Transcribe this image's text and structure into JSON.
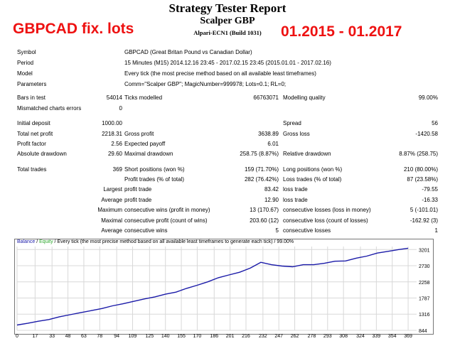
{
  "header": {
    "title": "Strategy Tester Report",
    "expert": "Scalper GBP",
    "server_build": "Alpari-ECN1 (Build 1031)"
  },
  "overlay": {
    "pair_text": "GBPCAD fix. lots",
    "date_range_text": "01.2015 - 01.2017",
    "color": "#ee1111"
  },
  "info": {
    "symbol": {
      "label": "Symbol",
      "value": "GBPCAD (Great Britan Pound vs Canadian Dollar)"
    },
    "period": {
      "label": "Period",
      "value": "15 Minutes (M15) 2014.12.16 23:45 - 2017.02.15 23:45 (2015.01.01 - 2017.02.16)"
    },
    "model": {
      "label": "Model",
      "value": "Every tick (the most precise method based on all available least timeframes)"
    },
    "parameters": {
      "label": "Parameters",
      "value": "Comm=\"Scalper GBP\"; MagicNumber=999978; Lots=0.1; RL=0;"
    }
  },
  "stats": {
    "bars_in_test": {
      "label": "Bars in test",
      "value": "54014"
    },
    "ticks_modelled": {
      "label": "Ticks modelled",
      "value": "66763071"
    },
    "modelling_quality": {
      "label": "Modelling quality",
      "value": "99.00%"
    },
    "mismatched_errors": {
      "label": "Mismatched charts errors",
      "value": "0"
    },
    "initial_deposit": {
      "label": "Initial deposit",
      "value": "1000.00"
    },
    "spread": {
      "label": "Spread",
      "value": "56"
    },
    "total_net_profit": {
      "label": "Total net profit",
      "value": "2218.31"
    },
    "gross_profit": {
      "label": "Gross profit",
      "value": "3638.89"
    },
    "gross_loss": {
      "label": "Gross loss",
      "value": "-1420.58"
    },
    "profit_factor": {
      "label": "Profit factor",
      "value": "2.56"
    },
    "expected_payoff": {
      "label": "Expected payoff",
      "value": "6.01"
    },
    "absolute_drawdown": {
      "label": "Absolute drawdown",
      "value": "29.60"
    },
    "maximal_drawdown": {
      "label": "Maximal drawdown",
      "value": "258.75 (8.87%)"
    },
    "relative_drawdown": {
      "label": "Relative drawdown",
      "value": "8.87% (258.75)"
    },
    "total_trades": {
      "label": "Total trades",
      "value": "369"
    },
    "short_positions": {
      "label": "Short positions (won %)",
      "value": "159 (71.70%)"
    },
    "long_positions": {
      "label": "Long positions (won %)",
      "value": "210 (80.00%)"
    },
    "profit_trades": {
      "label": "Profit trades (% of total)",
      "value": "282 (76.42%)"
    },
    "loss_trades": {
      "label": "Loss trades (% of total)",
      "value": "87 (23.58%)"
    },
    "largest": {
      "label": "Largest",
      "profit_label": "profit trade",
      "profit_value": "83.42",
      "loss_label": "loss trade",
      "loss_value": "-79.55"
    },
    "average": {
      "label": "Average",
      "profit_label": "profit trade",
      "profit_value": "12.90",
      "loss_label": "loss trade",
      "loss_value": "-16.33"
    },
    "maximum": {
      "label": "Maximum",
      "wins_label": "consecutive wins (profit in money)",
      "wins_value": "13 (170.67)",
      "losses_label": "consecutive losses (loss in money)",
      "losses_value": "5 (-101.01)"
    },
    "maximal": {
      "label": "Maximal",
      "profit_label": "consecutive profit (count of wins)",
      "profit_value": "203.60 (12)",
      "loss_label": "consecutive loss (count of losses)",
      "loss_value": "-162.92 (3)"
    },
    "average_consec": {
      "label": "Average",
      "wins_label": "consecutive wins",
      "wins_value": "5",
      "losses_label": "consecutive losses",
      "losses_value": "1"
    }
  },
  "chart_legend": {
    "balance": "Balance",
    "sep1": " / ",
    "equity": "Equity",
    "rest": " / Every tick (the most precise method based on all available least timeframes to generate each tick) / 99.00%"
  },
  "colors": {
    "balance": "#1a1aa8",
    "equity": "#2aa52a",
    "grid": "#d8d8d8"
  },
  "chart_data": {
    "type": "line",
    "title": "Balance / Equity",
    "xlabel": "",
    "ylabel": "",
    "xlim": [
      0,
      377
    ],
    "ylim": [
      844,
      3290
    ],
    "x_ticks": [
      0,
      17,
      33,
      48,
      63,
      78,
      94,
      109,
      125,
      140,
      155,
      170,
      186,
      201,
      216,
      232,
      247,
      262,
      278,
      293,
      308,
      324,
      339,
      354,
      369
    ],
    "y_ticks": [
      844,
      1316,
      1787,
      2258,
      2730,
      3201
    ],
    "series": [
      {
        "name": "Balance",
        "x": [
          0,
          10,
          20,
          30,
          40,
          50,
          60,
          70,
          80,
          90,
          100,
          110,
          120,
          130,
          140,
          150,
          160,
          170,
          180,
          190,
          200,
          210,
          220,
          230,
          240,
          250,
          260,
          270,
          280,
          290,
          300,
          310,
          320,
          330,
          340,
          350,
          360,
          369
        ],
        "y": [
          1000,
          1050,
          1110,
          1160,
          1240,
          1300,
          1360,
          1420,
          1480,
          1560,
          1620,
          1690,
          1760,
          1820,
          1900,
          1960,
          2070,
          2160,
          2260,
          2380,
          2460,
          2540,
          2660,
          2830,
          2760,
          2720,
          2700,
          2760,
          2760,
          2800,
          2860,
          2870,
          2950,
          3010,
          3100,
          3150,
          3200,
          3240
        ]
      }
    ]
  }
}
